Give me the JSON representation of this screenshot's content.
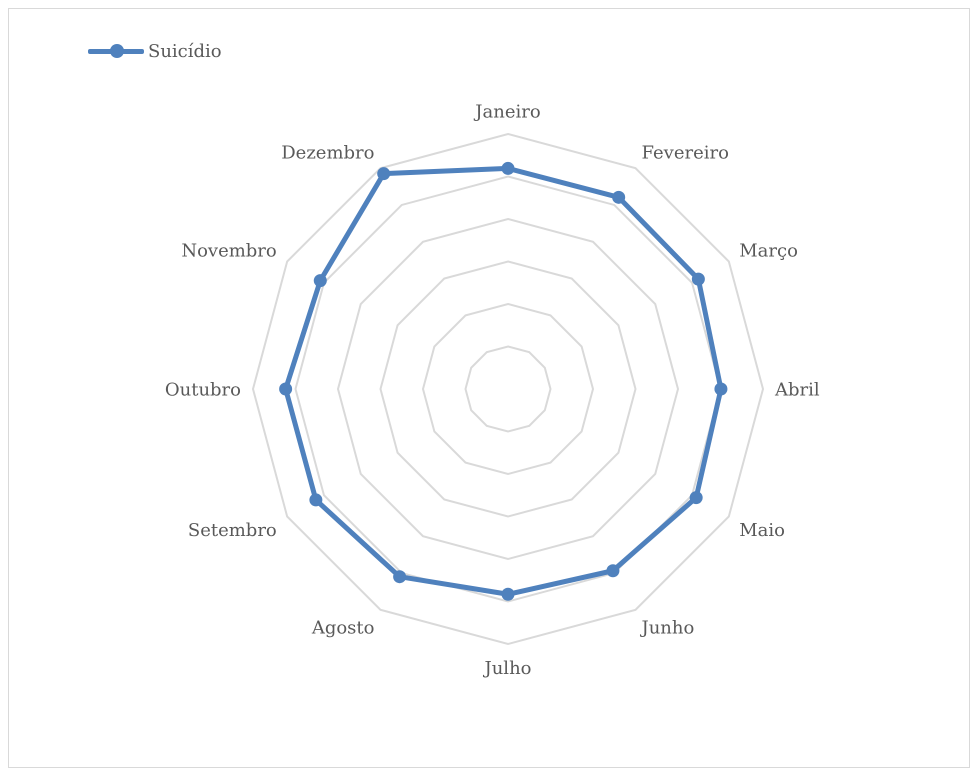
{
  "chart_data": {
    "type": "radar",
    "categories": [
      "Janeiro",
      "Fevereiro",
      "Março",
      "Abril",
      "Maio",
      "Junho",
      "Julho",
      "Agosto",
      "Setembro",
      "Outubro",
      "Novembro",
      "Dezembro"
    ],
    "series": [
      {
        "name": "Suicídio",
        "color": "#4f81bd",
        "values": [
          86.5,
          86.8,
          86.2,
          83.5,
          85.2,
          82.3,
          80.5,
          85.0,
          87.0,
          87.2,
          85.0,
          97.5
        ]
      }
    ],
    "rlim": [
      0,
      100
    ],
    "grid_rings": 6,
    "grid_color": "#d9d9d9",
    "legend_position": "top-left",
    "title": ""
  }
}
